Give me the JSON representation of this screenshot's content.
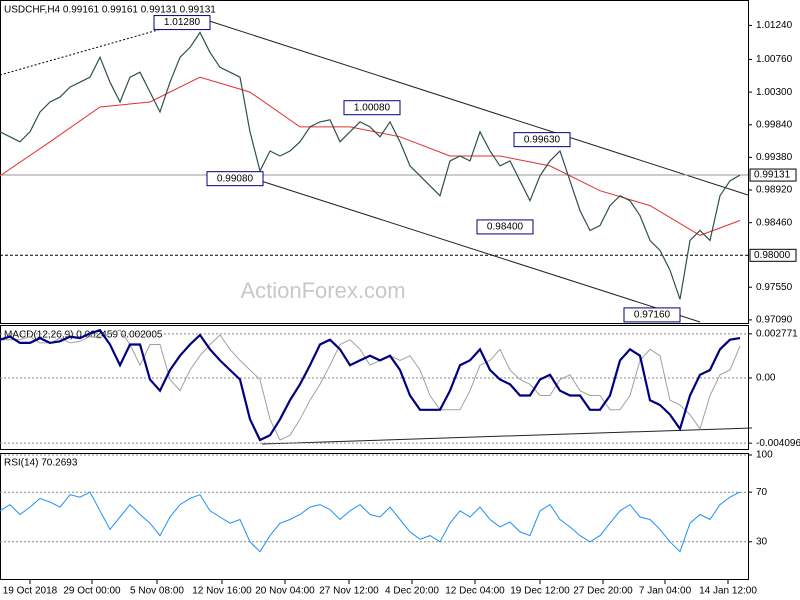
{
  "chart_data": [
    {
      "type": "line",
      "title": "USDCHF,H4 0.99161 0.99161 0.99131 0.99131",
      "watermark": "ActionForex.com",
      "color": "#2f4f4f",
      "x": [
        0,
        1,
        2,
        3,
        4,
        5,
        6,
        7,
        8,
        9,
        10,
        11,
        12,
        13,
        14,
        15,
        16,
        17,
        18,
        19,
        20,
        21,
        22,
        23,
        24,
        25,
        26,
        27,
        28,
        29,
        30,
        31,
        32,
        33,
        34,
        35,
        36,
        37,
        38,
        39,
        40,
        41,
        42,
        43,
        44,
        45,
        46,
        47,
        48,
        49,
        50,
        51,
        52,
        53,
        54,
        55,
        56,
        57,
        58,
        59,
        60,
        61,
        62,
        63,
        64,
        65,
        66,
        67,
        68,
        69,
        70,
        71,
        72,
        73,
        74
      ],
      "values": [
        0.9974,
        0.9967,
        0.996,
        0.9974,
        1.0002,
        1.0016,
        1.0023,
        1.0037,
        1.0044,
        1.0051,
        1.0079,
        1.0044,
        1.0016,
        1.0051,
        1.0058,
        1.003,
        1.0002,
        1.0044,
        1.0079,
        1.0093,
        1.0114,
        1.0086,
        1.0065,
        1.0058,
        1.0051,
        0.9974,
        0.9919,
        0.9947,
        0.994,
        0.9947,
        0.996,
        0.9981,
        0.9988,
        0.9991,
        0.996,
        0.9974,
        0.9988,
        0.9981,
        0.9967,
        0.9988,
        0.996,
        0.9926,
        0.9912,
        0.9898,
        0.9884,
        0.9933,
        0.994,
        0.9933,
        0.9974,
        0.9947,
        0.9926,
        0.9933,
        0.9905,
        0.9877,
        0.9912,
        0.9933,
        0.9947,
        0.9905,
        0.9863,
        0.9835,
        0.9842,
        0.987,
        0.9884,
        0.9877,
        0.9856,
        0.9821,
        0.9807,
        0.9779,
        0.9738,
        0.9821,
        0.9835,
        0.9821,
        0.9884,
        0.9905,
        0.9913
      ],
      "overlays": [
        {
          "color": "#e0302f",
          "x": [
            0,
            5,
            10,
            15,
            20,
            25,
            30,
            35,
            40,
            45,
            50,
            55,
            60,
            65,
            70,
            74
          ],
          "values": [
            0.9912,
            0.996,
            1.0009,
            1.0016,
            1.0051,
            1.003,
            0.9981,
            0.9981,
            0.9967,
            0.994,
            0.994,
            0.9926,
            0.9891,
            0.987,
            0.9828,
            0.9849
          ]
        }
      ],
      "annotations": [
        {
          "x": 18.2,
          "value": 1.0128,
          "label": "1.01280"
        },
        {
          "x": 23.5,
          "value": 0.9908,
          "label": "0.99080"
        },
        {
          "x": 37.2,
          "value": 1.0008,
          "label": "1.00080"
        },
        {
          "x": 54.2,
          "value": 0.9963,
          "label": "0.99630"
        },
        {
          "x": 50.5,
          "value": 0.984,
          "label": "0.98400"
        },
        {
          "x": 65.2,
          "value": 0.9716,
          "label": "0.97160"
        }
      ],
      "levels": [
        {
          "value": 0.98,
          "label": "0.98000",
          "style": "dashed"
        },
        {
          "value": 0.99131,
          "label": "0.99131",
          "style": "solid"
        }
      ],
      "xlim": [
        0,
        74.8
      ],
      "ylim": [
        0.9706,
        1.0157
      ],
      "yticks": [
        {
          "value": 1.0124,
          "label": "1.01240"
        },
        {
          "value": 1.0076,
          "label": "1.00760"
        },
        {
          "value": 1.003,
          "label": "1.00300"
        },
        {
          "value": 0.9984,
          "label": "0.99840"
        },
        {
          "value": 0.9938,
          "label": "0.99380"
        },
        {
          "value": 0.9892,
          "label": "0.98920"
        },
        {
          "value": 0.9846,
          "label": "0.98460"
        },
        {
          "value": 0.9755,
          "label": "0.97550"
        },
        {
          "value": 0.9709,
          "label": "0.97090"
        }
      ]
    },
    {
      "type": "line",
      "title": "MACD(12,26,9) 0.002459 0.002005",
      "color": "#000080",
      "x": [
        0,
        1,
        2,
        3,
        4,
        5,
        6,
        7,
        8,
        9,
        10,
        11,
        12,
        13,
        14,
        15,
        16,
        17,
        18,
        19,
        20,
        21,
        22,
        23,
        24,
        25,
        26,
        27,
        28,
        29,
        30,
        31,
        32,
        33,
        34,
        35,
        36,
        37,
        38,
        39,
        40,
        41,
        42,
        43,
        44,
        45,
        46,
        47,
        48,
        49,
        50,
        51,
        52,
        53,
        54,
        55,
        56,
        57,
        58,
        59,
        60,
        61,
        62,
        63,
        64,
        65,
        66,
        67,
        68,
        69,
        70,
        71,
        72,
        73,
        74
      ],
      "values": [
        0.0024,
        0.0026,
        0.0022,
        0.0022,
        0.0025,
        0.0022,
        0.0023,
        0.0026,
        0.0025,
        0.0028,
        0.003,
        0.0021,
        0.0008,
        0.0021,
        0.0021,
        -0.0001,
        -0.0008,
        0.0005,
        0.0014,
        0.0021,
        0.0027,
        0.0018,
        0.0011,
        0.0005,
        -0.0001,
        -0.0026,
        -0.0039,
        -0.0036,
        -0.0026,
        -0.0014,
        -0.0004,
        0.0008,
        0.0021,
        0.0024,
        0.0018,
        0.0008,
        0.0011,
        0.0014,
        0.0011,
        0.0014,
        0.0005,
        -0.0011,
        -0.002,
        -0.002,
        -0.002,
        -0.0008,
        0.0008,
        0.0011,
        0.0018,
        0.0005,
        -0.0001,
        -0.0004,
        -0.0011,
        -0.0011,
        -0.0001,
        0.0002,
        -0.0008,
        -0.0011,
        -0.0011,
        -0.002,
        -0.002,
        -0.0011,
        0.0011,
        0.0018,
        0.0014,
        -0.0014,
        -0.0017,
        -0.0023,
        -0.0032,
        -0.0011,
        0.0002,
        0.0005,
        0.0018,
        0.0024,
        0.0025
      ],
      "overlays": [
        {
          "color": "#a0a0a0",
          "x": [
            0,
            1,
            2,
            3,
            4,
            5,
            6,
            7,
            8,
            9,
            10,
            11,
            12,
            13,
            14,
            15,
            16,
            17,
            18,
            19,
            20,
            21,
            22,
            23,
            24,
            25,
            26,
            27,
            28,
            29,
            30,
            31,
            32,
            33,
            34,
            35,
            36,
            37,
            38,
            39,
            40,
            41,
            42,
            43,
            44,
            45,
            46,
            47,
            48,
            49,
            50,
            51,
            52,
            53,
            54,
            55,
            56,
            57,
            58,
            59,
            60,
            61,
            62,
            63,
            64,
            65,
            66,
            67,
            68,
            69,
            70,
            71,
            72,
            73,
            74
          ],
          "values": [
            0.0024,
            0.0024,
            0.0024,
            0.0026,
            0.0022,
            0.0022,
            0.0025,
            0.0022,
            0.0023,
            0.0026,
            0.0025,
            0.0028,
            0.003,
            0.0021,
            0.0008,
            0.0021,
            0.0021,
            -0.0001,
            -0.0008,
            0.0005,
            0.0014,
            0.0021,
            0.0027,
            0.0018,
            0.0011,
            0.0005,
            -0.0001,
            -0.0026,
            -0.0039,
            -0.0036,
            -0.0026,
            -0.0014,
            -0.0004,
            0.0008,
            0.0021,
            0.0024,
            0.0018,
            0.0008,
            0.0011,
            0.0014,
            0.0011,
            0.0014,
            0.0005,
            -0.0011,
            -0.002,
            -0.002,
            -0.002,
            -0.0008,
            0.0008,
            0.0011,
            0.0018,
            0.0005,
            -0.0001,
            -0.0004,
            -0.0011,
            -0.0011,
            -0.0001,
            0.0002,
            -0.0008,
            -0.0011,
            -0.0011,
            -0.002,
            -0.002,
            -0.0011,
            0.0011,
            0.0018,
            0.0014,
            -0.0014,
            -0.0017,
            -0.0023,
            -0.0032,
            -0.0011,
            0.0002,
            0.0005,
            0.002
          ]
        }
      ],
      "xlim": [
        0,
        74.8
      ],
      "ylim": [
        -0.0044,
        0.0032
      ],
      "yticks": [
        0.002771,
        {
          "value": 0,
          "label": "0.00"
        },
        -0.004096
      ]
    },
    {
      "type": "line",
      "title": "RSI(14) 70.2693",
      "color": "#1e90ff",
      "x": [
        0,
        1,
        2,
        3,
        4,
        5,
        6,
        7,
        8,
        9,
        10,
        11,
        12,
        13,
        14,
        15,
        16,
        17,
        18,
        19,
        20,
        21,
        22,
        23,
        24,
        25,
        26,
        27,
        28,
        29,
        30,
        31,
        32,
        33,
        34,
        35,
        36,
        37,
        38,
        39,
        40,
        41,
        42,
        43,
        44,
        45,
        46,
        47,
        48,
        49,
        50,
        51,
        52,
        53,
        54,
        55,
        56,
        57,
        58,
        59,
        60,
        61,
        62,
        63,
        64,
        65,
        66,
        67,
        68,
        69,
        70,
        71,
        72,
        73,
        74
      ],
      "values": [
        55,
        60,
        52,
        58,
        65,
        62,
        58,
        68,
        66,
        70,
        55,
        40,
        50,
        60,
        52,
        45,
        35,
        50,
        60,
        65,
        68,
        55,
        50,
        45,
        48,
        30,
        22,
        35,
        45,
        48,
        52,
        58,
        60,
        56,
        48,
        55,
        60,
        52,
        50,
        58,
        48,
        38,
        32,
        35,
        30,
        45,
        55,
        50,
        58,
        48,
        42,
        46,
        38,
        35,
        55,
        60,
        48,
        42,
        35,
        30,
        35,
        45,
        55,
        60,
        50,
        48,
        40,
        30,
        22,
        45,
        52,
        48,
        60,
        66,
        70.2693
      ],
      "xlim": [
        0,
        74.8
      ],
      "ylim": [
        0,
        100
      ],
      "yticks": [
        100,
        70,
        30
      ],
      "xticks": [
        {
          "value": 3,
          "label": "19 Oct 2018"
        },
        {
          "value": 9.2,
          "label": "29 Oct 00:00"
        },
        {
          "value": 15.7,
          "label": "5 Nov 08:00"
        },
        {
          "value": 22.2,
          "label": "12 Nov 16:00"
        },
        {
          "value": 28.5,
          "label": "20 Nov 04:00"
        },
        {
          "value": 34.9,
          "label": "27 Nov 12:00"
        },
        {
          "value": 41.2,
          "label": "4 Dec 20:00"
        },
        {
          "value": 47.5,
          "label": "12 Dec 04:00"
        },
        {
          "value": 54,
          "label": "19 Dec 12:00"
        },
        {
          "value": 60.3,
          "label": "27 Dec 20:00"
        },
        {
          "value": 66.5,
          "label": "7 Jan 04:00"
        },
        {
          "value": 72.8,
          "label": "14 Jan 12:00"
        }
      ]
    }
  ]
}
